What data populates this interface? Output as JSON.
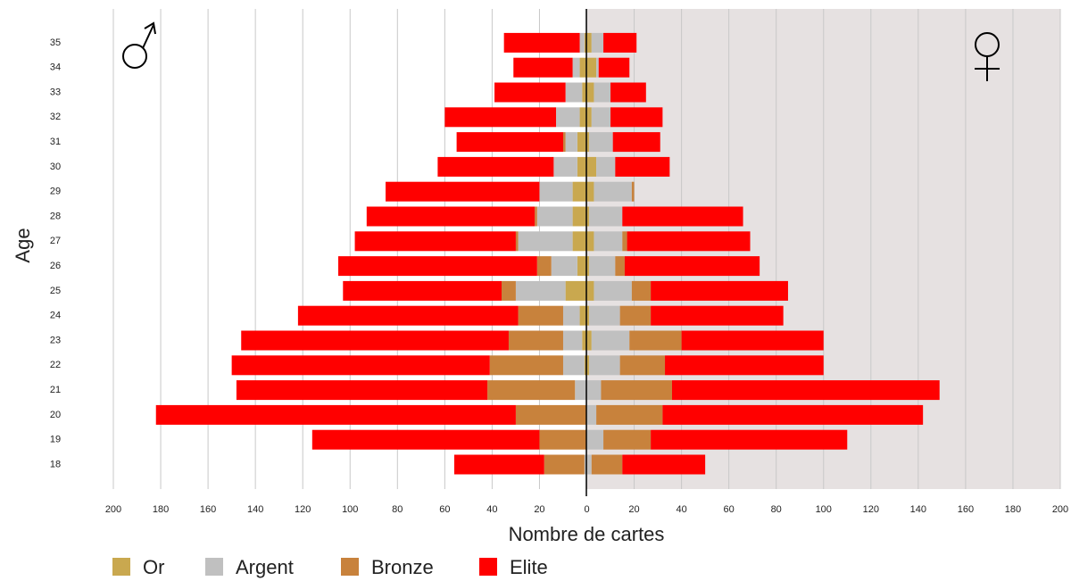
{
  "chart_data": {
    "type": "pyramid",
    "x_label": "Nombre de cartes",
    "y_label": "Age",
    "categories": [
      "35",
      "34",
      "33",
      "32",
      "31",
      "30",
      "29",
      "28",
      "27",
      "26",
      "25",
      "24",
      "23",
      "22",
      "21",
      "20",
      "19",
      "18"
    ],
    "xlim": [
      -200,
      200
    ],
    "xticks": [
      {
        "value": -200,
        "label": "200"
      },
      {
        "value": -180,
        "label": "180"
      },
      {
        "value": -160,
        "label": "160"
      },
      {
        "value": -140,
        "label": "140"
      },
      {
        "value": -120,
        "label": "120"
      },
      {
        "value": -100,
        "label": "100"
      },
      {
        "value": -80,
        "label": "80"
      },
      {
        "value": -60,
        "label": "60"
      },
      {
        "value": -40,
        "label": "40"
      },
      {
        "value": -20,
        "label": "20"
      },
      0,
      20,
      40,
      60,
      80,
      100,
      120,
      140,
      160,
      180,
      200
    ],
    "grid": true,
    "series": [
      {
        "name": "Or",
        "color": "#c9a84f",
        "left_values": [
          1,
          3,
          2,
          3,
          4,
          4,
          6,
          6,
          6,
          4,
          9,
          3,
          2,
          1,
          0,
          0,
          0,
          0
        ],
        "right_values": [
          2,
          4,
          3,
          2,
          1,
          4,
          3,
          1,
          3,
          1,
          3,
          1,
          2,
          1,
          0,
          0,
          0,
          0
        ]
      },
      {
        "name": "Argent",
        "color": "#c0c0c0",
        "left_values": [
          2,
          3,
          7,
          10,
          5,
          10,
          14,
          15,
          23,
          11,
          21,
          7,
          8,
          9,
          5,
          0,
          0,
          1
        ],
        "right_values": [
          5,
          1,
          7,
          8,
          10,
          8,
          16,
          14,
          12,
          11,
          16,
          13,
          16,
          13,
          6,
          4,
          7,
          2
        ]
      },
      {
        "name": "Bronze",
        "color": "#c8823c",
        "left_values": [
          0,
          0,
          0,
          0,
          1,
          0,
          0,
          1,
          1,
          6,
          6,
          19,
          23,
          31,
          37,
          30,
          20,
          17
        ],
        "right_values": [
          0,
          0,
          0,
          0,
          0,
          0,
          1,
          0,
          2,
          4,
          8,
          13,
          22,
          19,
          30,
          28,
          20,
          13
        ]
      },
      {
        "name": "Elite",
        "color": "#ff0000",
        "left_values": [
          32,
          25,
          30,
          47,
          45,
          49,
          65,
          71,
          68,
          84,
          67,
          93,
          113,
          109,
          106,
          152,
          96,
          38
        ],
        "right_values": [
          14,
          13,
          15,
          22,
          20,
          23,
          0,
          51,
          52,
          57,
          58,
          56,
          60,
          67,
          113,
          110,
          83,
          35
        ]
      }
    ]
  }
}
